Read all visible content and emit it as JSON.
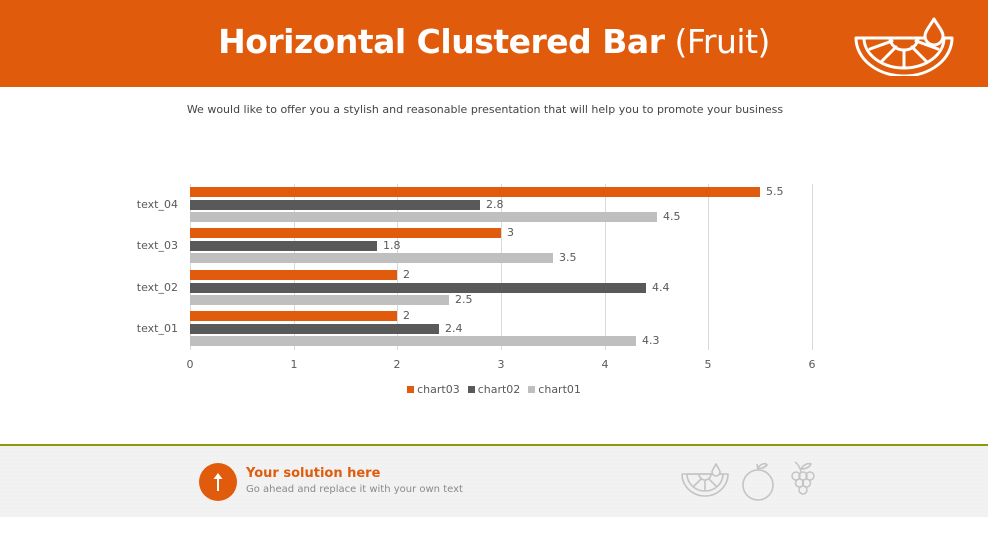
{
  "header": {
    "title_bold": "Horizontal Clustered Bar",
    "title_light": "(Fruit)",
    "icon": "orange-slice-icon"
  },
  "subtitle": "We would like to offer you a stylish and reasonable presentation that will help you to promote your business",
  "colors": {
    "accent": "#e05c0c",
    "chart03": "#e05c0c",
    "chart02": "#595959",
    "chart01": "#bfbfbf",
    "footer_line": "#8a9a0a",
    "footer_bg": "#f2f2f2"
  },
  "chart_data": {
    "type": "bar",
    "orientation": "horizontal",
    "title": "Horizontal Clustered Bar (Fruit)",
    "categories": [
      "text_01",
      "text_02",
      "text_03",
      "text_04"
    ],
    "series": [
      {
        "name": "chart03",
        "color": "#e05c0c",
        "values": [
          2,
          2,
          3,
          5.5
        ]
      },
      {
        "name": "chart02",
        "color": "#595959",
        "values": [
          2.4,
          4.4,
          1.8,
          2.8
        ]
      },
      {
        "name": "chart01",
        "color": "#bfbfbf",
        "values": [
          4.3,
          2.5,
          3.5,
          4.5
        ]
      }
    ],
    "xlabel": "",
    "ylabel": "",
    "xlim": [
      0,
      6
    ],
    "x_ticks": [
      "0",
      "1",
      "2",
      "3",
      "4",
      "5",
      "6"
    ],
    "grid": "vertical",
    "data_labels": true,
    "legend_position": "bottom",
    "legend": [
      "chart03",
      "chart02",
      "chart01"
    ]
  },
  "footer": {
    "icon": "arrow-up-icon",
    "title": "Your solution here",
    "text": "Go ahead and replace it with your own text",
    "icons": [
      "orange-slice-icon",
      "apple-icon",
      "grapes-icon"
    ]
  }
}
